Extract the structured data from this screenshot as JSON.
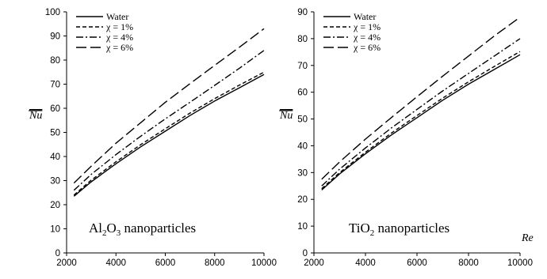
{
  "chart_data": [
    {
      "type": "line",
      "annotation": {
        "prefix": "Al",
        "sub1": "2",
        "mid": "O",
        "sub2": "3",
        "suffix": " nanoparticles"
      },
      "ylabel": "Nu",
      "xlabel": "",
      "xlim": [
        2000,
        10000
      ],
      "ylim": [
        0,
        100
      ],
      "xticks": [
        "2000",
        "4000",
        "6000",
        "8000",
        "10000"
      ],
      "yticks": [
        "0",
        "10",
        "20",
        "30",
        "40",
        "50",
        "60",
        "70",
        "80",
        "90",
        "100"
      ],
      "x": [
        2300,
        3000,
        4000,
        5000,
        6000,
        7000,
        8000,
        9000,
        10000
      ],
      "legend_position": "top-left",
      "series": [
        {
          "name": "Water",
          "dash": "solid",
          "values": [
            23.5,
            29.5,
            37.0,
            44.0,
            50.5,
            57.0,
            63.0,
            68.5,
            74.0
          ]
        },
        {
          "name": "χ = 1%",
          "dash": "dash",
          "values": [
            24.0,
            30.2,
            37.8,
            44.9,
            51.5,
            58.0,
            64.0,
            69.6,
            75.0
          ]
        },
        {
          "name": "χ = 4%",
          "dash": "dashdot",
          "values": [
            26.0,
            32.6,
            40.8,
            48.4,
            55.6,
            62.5,
            69.5,
            76.6,
            84.0
          ]
        },
        {
          "name": "χ = 6%",
          "dash": "longdash",
          "values": [
            29.0,
            36.0,
            45.5,
            54.0,
            62.5,
            70.2,
            77.8,
            85.3,
            93.0
          ]
        }
      ]
    },
    {
      "type": "line",
      "annotation": {
        "prefix": "TiO",
        "sub1": "2",
        "mid": "",
        "sub2": "",
        "suffix": " nanoparticles"
      },
      "ylabel": "Nu",
      "xlabel": "Re",
      "xlim": [
        2000,
        10000
      ],
      "ylim": [
        0,
        90
      ],
      "xticks": [
        "2000",
        "4000",
        "6000",
        "8000",
        "10000"
      ],
      "yticks": [
        "0",
        "10",
        "20",
        "30",
        "40",
        "50",
        "60",
        "70",
        "80",
        "90"
      ],
      "x": [
        2300,
        3000,
        4000,
        5000,
        6000,
        7000,
        8000,
        9000,
        10000
      ],
      "legend_position": "top-left",
      "series": [
        {
          "name": "Water",
          "dash": "solid",
          "values": [
            23.5,
            29.5,
            37.0,
            44.0,
            50.5,
            57.0,
            63.0,
            68.5,
            74.0
          ]
        },
        {
          "name": "χ = 1%",
          "dash": "dash",
          "values": [
            24.0,
            30.0,
            37.6,
            44.7,
            51.3,
            57.8,
            63.9,
            69.6,
            75.2
          ]
        },
        {
          "name": "χ = 4%",
          "dash": "dashdot",
          "values": [
            25.0,
            31.3,
            39.2,
            46.6,
            53.6,
            60.5,
            67.0,
            73.5,
            80.0
          ]
        },
        {
          "name": "χ = 6%",
          "dash": "longdash",
          "values": [
            27.5,
            34.0,
            42.5,
            50.5,
            58.3,
            66.0,
            73.5,
            81.0,
            88.0
          ]
        }
      ]
    }
  ]
}
